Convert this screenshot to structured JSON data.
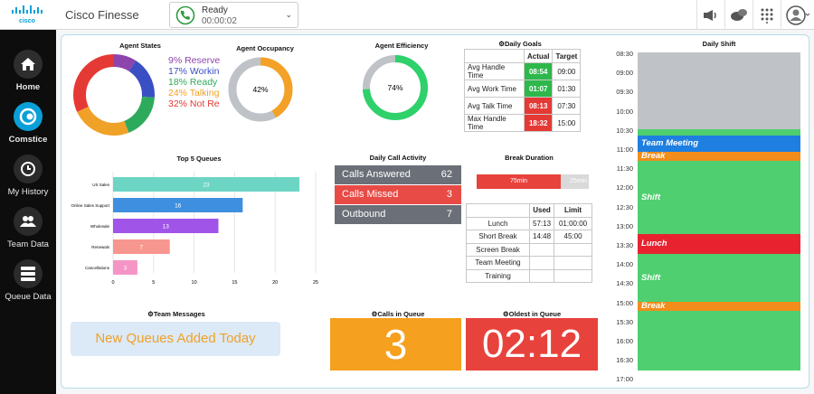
{
  "header": {
    "logo_text": "cisco",
    "app_title": "Cisco Finesse",
    "status": "Ready",
    "status_time": "00:00:02"
  },
  "sidebar": {
    "items": [
      {
        "label": "Home",
        "icon": "home-icon"
      },
      {
        "label": "Comstice",
        "icon": "comstice-icon"
      },
      {
        "label": "My History",
        "icon": "history-icon"
      },
      {
        "label": "Team Data",
        "icon": "team-icon"
      },
      {
        "label": "Queue Data",
        "icon": "queue-data-icon"
      }
    ]
  },
  "agent_states": {
    "title": "Agent States",
    "legend": [
      {
        "label": "9% Reserve",
        "pct": 9,
        "color": "#8e44ad"
      },
      {
        "label": "17% Workin",
        "pct": 17,
        "color": "#3a4fc4"
      },
      {
        "label": "18% Ready",
        "pct": 18,
        "color": "#2eaa5c"
      },
      {
        "label": "24% Talking",
        "pct": 24,
        "color": "#f0a128"
      },
      {
        "label": "32% Not Re",
        "pct": 32,
        "color": "#e53935"
      }
    ]
  },
  "occupancy": {
    "title": "Agent Occupancy",
    "value_label": "42%",
    "value": 42
  },
  "efficiency": {
    "title": "Agent Efficiency",
    "value_label": "74%",
    "value": 74
  },
  "daily_goals": {
    "title": "Daily Goals",
    "col_actual": "Actual",
    "col_target": "Target",
    "rows": [
      {
        "label": "Avg Handle Time",
        "actual": "08:54",
        "target": "09:00",
        "color": "#2eb84c"
      },
      {
        "label": "Avg Work Time",
        "actual": "01:07",
        "target": "01:30",
        "color": "#2eb84c"
      },
      {
        "label": "Avg Talk Time",
        "actual": "08:13",
        "target": "07:30",
        "color": "#e53935"
      },
      {
        "label": "Max Handle Time",
        "actual": "18:32",
        "target": "15:00",
        "color": "#e53935"
      }
    ]
  },
  "top_queues": {
    "title": "Top 5 Queues",
    "ticks": [
      "0",
      "5",
      "10",
      "15",
      "20",
      "25"
    ]
  },
  "chart_data": {
    "type": "bar",
    "orientation": "horizontal",
    "categories": [
      "US Sales",
      "Online Sales Support",
      "Wholesale",
      "Renewals",
      "Cancellations"
    ],
    "values": [
      23,
      16,
      13,
      7,
      3
    ],
    "colors": [
      "#6dd5c4",
      "#3f8fe0",
      "#a054e8",
      "#f7968f",
      "#f595c6"
    ],
    "xlim": [
      0,
      25
    ]
  },
  "call_activity": {
    "title": "Daily Call Activity",
    "rows": [
      {
        "label": "Calls Answered",
        "value": "62",
        "color": "#6b7078"
      },
      {
        "label": "Calls Missed",
        "value": "3",
        "color": "#e84a45"
      },
      {
        "label": "Outbound",
        "value": "7",
        "color": "#6b7078"
      }
    ]
  },
  "break_duration": {
    "title": "Break Duration",
    "used_label": "75min",
    "remaining_label": "25min",
    "used_fraction": 0.75,
    "col_used": "Used",
    "col_limit": "Limit",
    "rows": [
      {
        "label": "Lunch",
        "used": "57:13",
        "limit": "01:00:00"
      },
      {
        "label": "Short Break",
        "used": "14:48",
        "limit": "45:00"
      },
      {
        "label": "Screen Break",
        "used": "",
        "limit": ""
      },
      {
        "label": "Team Meeting",
        "used": "",
        "limit": ""
      },
      {
        "label": "Training",
        "used": "",
        "limit": ""
      }
    ]
  },
  "team_messages": {
    "title": "Team Messages",
    "text": "New Queues Added Today"
  },
  "calls_in_queue": {
    "title": "Calls in Queue",
    "value": "3"
  },
  "oldest_in_queue": {
    "title": "Oldest in Queue",
    "value": "02:12"
  },
  "daily_shift": {
    "title": "Daily Shift",
    "times": [
      "08:30",
      "09:00",
      "09:30",
      "10:00",
      "10:30",
      "11:00",
      "11:30",
      "12:00",
      "12:30",
      "13:00",
      "13:30",
      "14:00",
      "14:30",
      "15:00",
      "15:30",
      "16:00",
      "16:30",
      "17:00"
    ],
    "blocks": [
      {
        "label": "",
        "start": "08:30",
        "end": "10:30",
        "color": "#bfc3c8"
      },
      {
        "label": "",
        "start": "10:30",
        "end": "10:40",
        "color": "#4fcf6f"
      },
      {
        "label": "Team Meeting",
        "start": "10:40",
        "end": "11:05",
        "color": "#1e7fe0"
      },
      {
        "label": "Break",
        "start": "11:05",
        "end": "11:20",
        "color": "#f28c1a"
      },
      {
        "label": "Shift",
        "start": "11:20",
        "end": "13:15",
        "color": "#4fcf6f"
      },
      {
        "label": "Lunch",
        "start": "13:15",
        "end": "13:45",
        "color": "#e8232f"
      },
      {
        "label": "Shift",
        "start": "13:45",
        "end": "15:00",
        "color": "#4fcf6f"
      },
      {
        "label": "Break",
        "start": "15:00",
        "end": "15:15",
        "color": "#f28c1a"
      },
      {
        "label": "",
        "start": "15:15",
        "end": "17:00",
        "color": "#4fcf6f"
      }
    ]
  }
}
